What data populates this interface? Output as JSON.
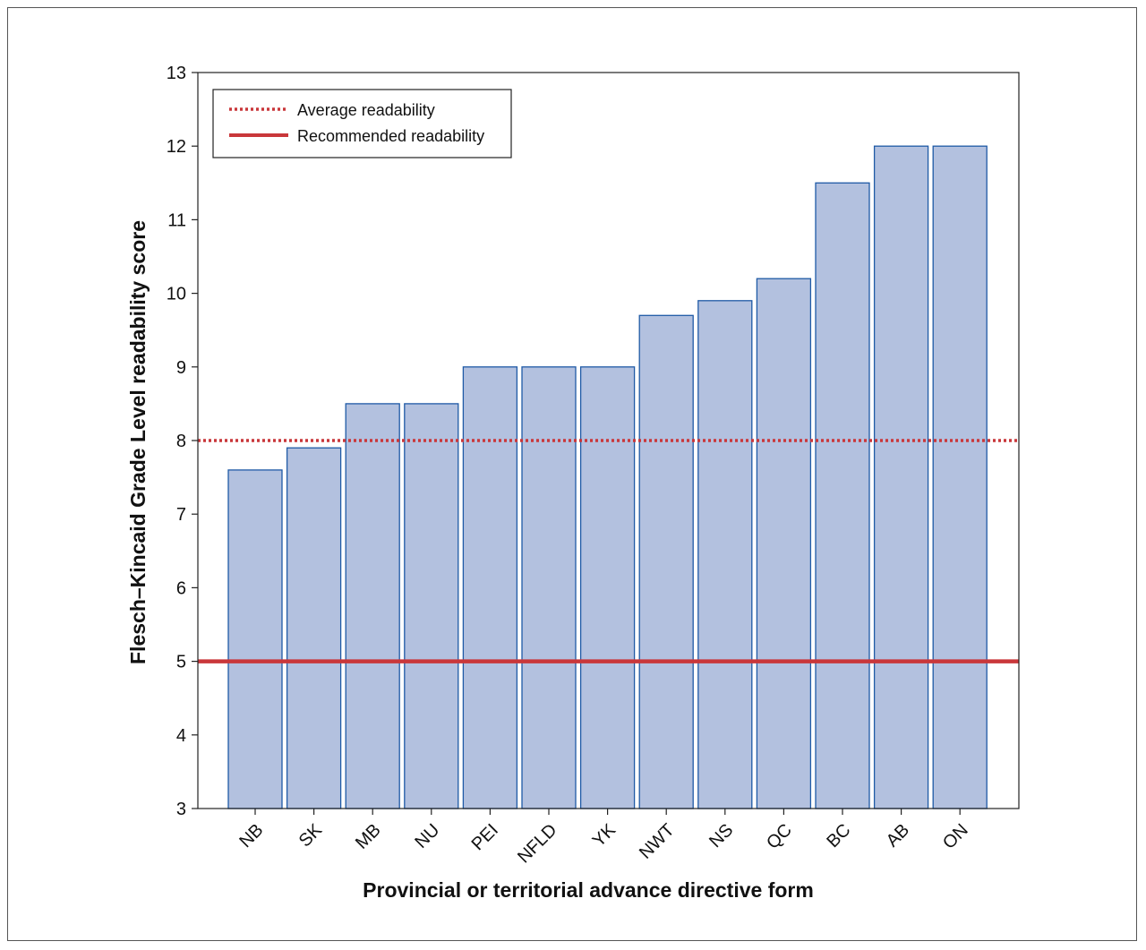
{
  "chart_data": {
    "type": "bar",
    "xlabel": "Provincial or territorial advance directive form",
    "ylabel": "Flesch–Kincaid Grade Level readability score",
    "categories": [
      "NB",
      "SK",
      "MB",
      "NU",
      "PEI",
      "NFLD",
      "YK",
      "NWT",
      "NS",
      "QC",
      "BC",
      "AB",
      "ON"
    ],
    "values": [
      7.6,
      7.9,
      8.5,
      8.5,
      9.0,
      9.0,
      9.0,
      9.7,
      9.9,
      10.2,
      11.5,
      12.0,
      12.0
    ],
    "ylim": [
      3,
      13
    ],
    "yticks": [
      3,
      4,
      5,
      6,
      7,
      8,
      9,
      10,
      11,
      12,
      13
    ],
    "grid": false,
    "bar_color": "#b3c1df",
    "bar_edge_color": "#1f5aa6",
    "reference_lines": [
      {
        "name": "Average readability",
        "value": 8,
        "style": "dotted",
        "color": "#c9373a"
      },
      {
        "name": "Recommended readability",
        "value": 5,
        "style": "solid",
        "color": "#c9373a"
      }
    ],
    "legend_position": "top-left"
  }
}
